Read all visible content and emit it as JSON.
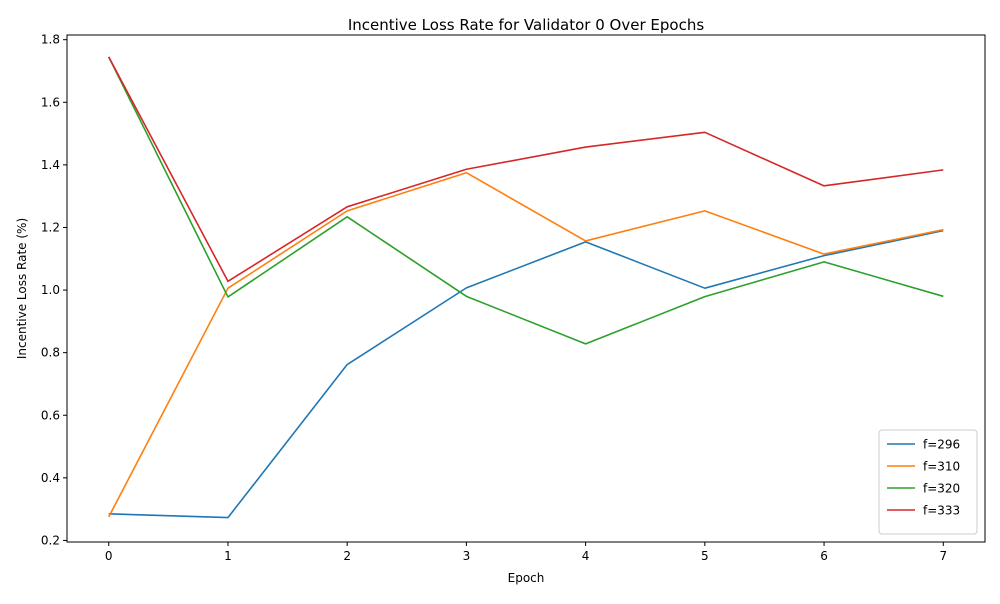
{
  "chart_data": {
    "type": "line",
    "title": "Incentive Loss Rate for Validator 0 Over Epochs",
    "xlabel": "Epoch",
    "ylabel": "Incentive Loss Rate (%)",
    "x": [
      0,
      1,
      2,
      3,
      4,
      5,
      6,
      7
    ],
    "xlim": [
      -0.35,
      7.35
    ],
    "ylim": [
      0.195,
      1.815
    ],
    "xticks": [
      0,
      1,
      2,
      3,
      4,
      5,
      6,
      7
    ],
    "yticks": [
      0.2,
      0.4,
      0.6,
      0.8,
      1.0,
      1.2,
      1.4,
      1.6,
      1.8
    ],
    "grid": false,
    "legend_position": "lower-right",
    "series": [
      {
        "name": "f=296",
        "color": "#1f77b4",
        "values": [
          0.285,
          0.273,
          0.762,
          1.007,
          1.154,
          1.006,
          1.11,
          1.19
        ]
      },
      {
        "name": "f=310",
        "color": "#ff7f0e",
        "values": [
          0.275,
          1.006,
          1.253,
          1.375,
          1.157,
          1.253,
          1.115,
          1.193
        ]
      },
      {
        "name": "f=320",
        "color": "#2ca02c",
        "values": [
          1.745,
          0.978,
          1.234,
          0.98,
          0.828,
          0.979,
          1.09,
          0.98
        ]
      },
      {
        "name": "f=333",
        "color": "#d62728",
        "values": [
          1.745,
          1.028,
          1.266,
          1.386,
          1.457,
          1.504,
          1.333,
          1.384
        ]
      }
    ]
  }
}
